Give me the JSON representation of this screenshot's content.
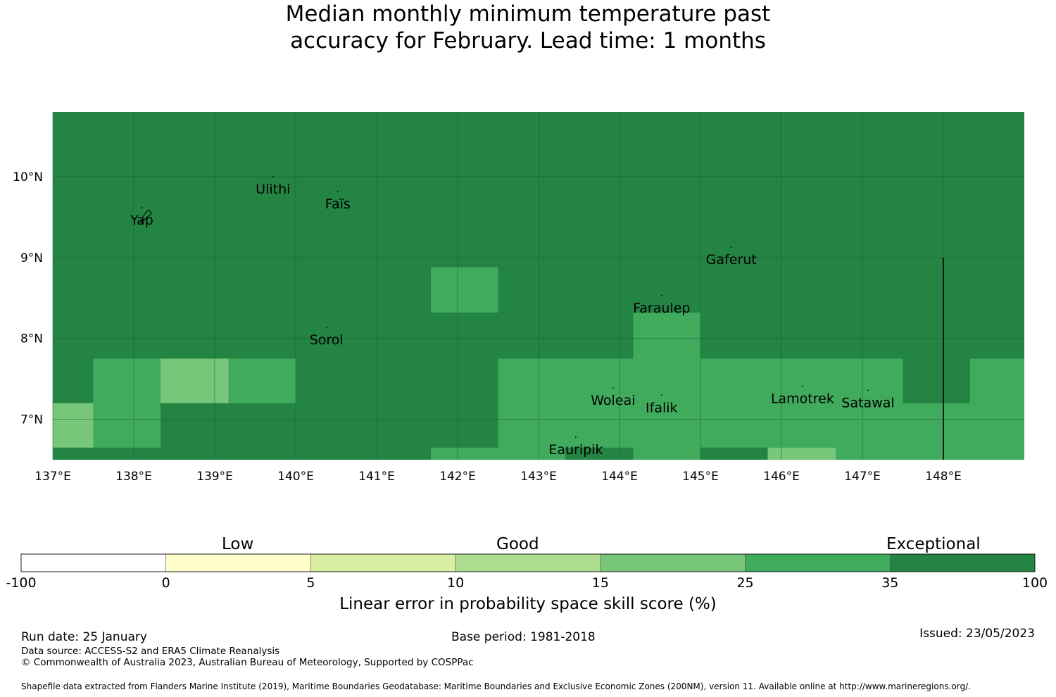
{
  "title_line1": "Median monthly minimum temperature past",
  "title_line2": "accuracy for February. Lead time: 1 months",
  "colors": {
    "exceptional": "#238443",
    "very_good": "#41ab5d",
    "good": "#78c679",
    "gridline": "#1a6332",
    "outline": "#000000"
  },
  "map": {
    "lon_range": [
      137,
      149
    ],
    "lat_range": [
      6.5,
      10.8
    ],
    "background_category": "exceptional",
    "x_ticks": [
      {
        "value": 137,
        "label": "137°E"
      },
      {
        "value": 138,
        "label": "138°E"
      },
      {
        "value": 139,
        "label": "139°E"
      },
      {
        "value": 140,
        "label": "140°E"
      },
      {
        "value": 141,
        "label": "141°E"
      },
      {
        "value": 142,
        "label": "142°E"
      },
      {
        "value": 143,
        "label": "143°E"
      },
      {
        "value": 144,
        "label": "144°E"
      },
      {
        "value": 145,
        "label": "145°E"
      },
      {
        "value": 146,
        "label": "146°E"
      },
      {
        "value": 147,
        "label": "147°E"
      },
      {
        "value": 148,
        "label": "148°E"
      }
    ],
    "y_ticks": [
      {
        "value": 7,
        "label": "7°N"
      },
      {
        "value": 8,
        "label": "8°N"
      },
      {
        "value": 9,
        "label": "9°N"
      },
      {
        "value": 10,
        "label": "10°N"
      }
    ],
    "cells": [
      {
        "lon": [
          137.0,
          137.5
        ],
        "lat": [
          6.65,
          7.2
        ],
        "category": "good"
      },
      {
        "lon": [
          137.5,
          138.33
        ],
        "lat": [
          6.65,
          7.75
        ],
        "category": "very_good"
      },
      {
        "lon": [
          138.33,
          139.17
        ],
        "lat": [
          7.2,
          7.75
        ],
        "category": "good"
      },
      {
        "lon": [
          139.17,
          140.0
        ],
        "lat": [
          7.2,
          7.75
        ],
        "category": "very_good"
      },
      {
        "lon": [
          141.67,
          142.5
        ],
        "lat": [
          8.32,
          8.88
        ],
        "category": "very_good"
      },
      {
        "lon": [
          141.67,
          142.5
        ],
        "lat": [
          6.5,
          6.65
        ],
        "category": "very_good"
      },
      {
        "lon": [
          142.5,
          144.17
        ],
        "lat": [
          6.5,
          7.75
        ],
        "category": "very_good"
      },
      {
        "lon": [
          144.17,
          145.0
        ],
        "lat": [
          6.5,
          8.32
        ],
        "category": "very_good"
      },
      {
        "lon": [
          145.0,
          147.5
        ],
        "lat": [
          6.65,
          7.75
        ],
        "category": "very_good"
      },
      {
        "lon": [
          147.5,
          148.33
        ],
        "lat": [
          6.5,
          7.2
        ],
        "category": "very_good"
      },
      {
        "lon": [
          148.33,
          149.0
        ],
        "lat": [
          6.5,
          7.75
        ],
        "category": "very_good"
      },
      {
        "lon": [
          145.83,
          146.67
        ],
        "lat": [
          6.5,
          6.65
        ],
        "category": "good"
      },
      {
        "lon": [
          146.67,
          147.5
        ],
        "lat": [
          6.5,
          6.65
        ],
        "category": "very_good"
      }
    ],
    "dark_strips": [
      {
        "lon": [
          143.33,
          144.17
        ],
        "lat": [
          6.5,
          6.65
        ]
      },
      {
        "lon": [
          145.0,
          145.83
        ],
        "lat": [
          6.5,
          6.65
        ]
      }
    ],
    "boundary_line": {
      "lon": 148.0,
      "lat": [
        6.5,
        9.0
      ]
    },
    "places": [
      {
        "name": "Ulithi",
        "lon": 139.72,
        "lat": 9.85
      },
      {
        "name": "Faïs",
        "lon": 140.52,
        "lat": 9.67
      },
      {
        "name": "Yap",
        "lon": 138.1,
        "lat": 9.47
      },
      {
        "name": "Gaferut",
        "lon": 145.38,
        "lat": 8.98
      },
      {
        "name": "Faraulep",
        "lon": 144.52,
        "lat": 8.38
      },
      {
        "name": "Sorol",
        "lon": 140.38,
        "lat": 7.99
      },
      {
        "name": "Woleai",
        "lon": 143.92,
        "lat": 7.24
      },
      {
        "name": "Ifalik",
        "lon": 144.52,
        "lat": 7.15
      },
      {
        "name": "Lamotrek",
        "lon": 146.26,
        "lat": 7.26
      },
      {
        "name": "Satawal",
        "lon": 147.07,
        "lat": 7.21
      },
      {
        "name": "Eauripik",
        "lon": 143.46,
        "lat": 6.63
      }
    ]
  },
  "colorbar": {
    "title": "Linear error in probability space skill score (%)",
    "levels": [
      {
        "label": "Low"
      },
      {
        "label": "Good"
      },
      {
        "label": "Exceptional"
      }
    ],
    "bins": [
      {
        "color": "#ffffff"
      },
      {
        "color": "#ffffcc"
      },
      {
        "color": "#d9f0a3"
      },
      {
        "color": "#addd8e"
      },
      {
        "color": "#78c679"
      },
      {
        "color": "#41ab5d"
      },
      {
        "color": "#238443"
      }
    ],
    "ticks": [
      "-100",
      "0",
      "5",
      "10",
      "15",
      "25",
      "35",
      "100"
    ]
  },
  "footer": {
    "run_date": "Run date: 25 January",
    "base_period": "Base period: 1981-2018",
    "issued": "Issued: 23/05/2023",
    "data_source": "Data source: ACCESS-S2 and ERA5 Climate Reanalysis",
    "copyright": "© Commonwealth of Australia 2023, Australian Bureau of Meteorology, Supported by COSPPac",
    "shapefile": "Shapefile data extracted from Flanders Marine Institute (2019), Maritime Boundaries Geodatabase: Maritime Boundaries and Exclusive Economic Zones (200NM), version 11. Available online at http://www.marineregions.org/."
  }
}
